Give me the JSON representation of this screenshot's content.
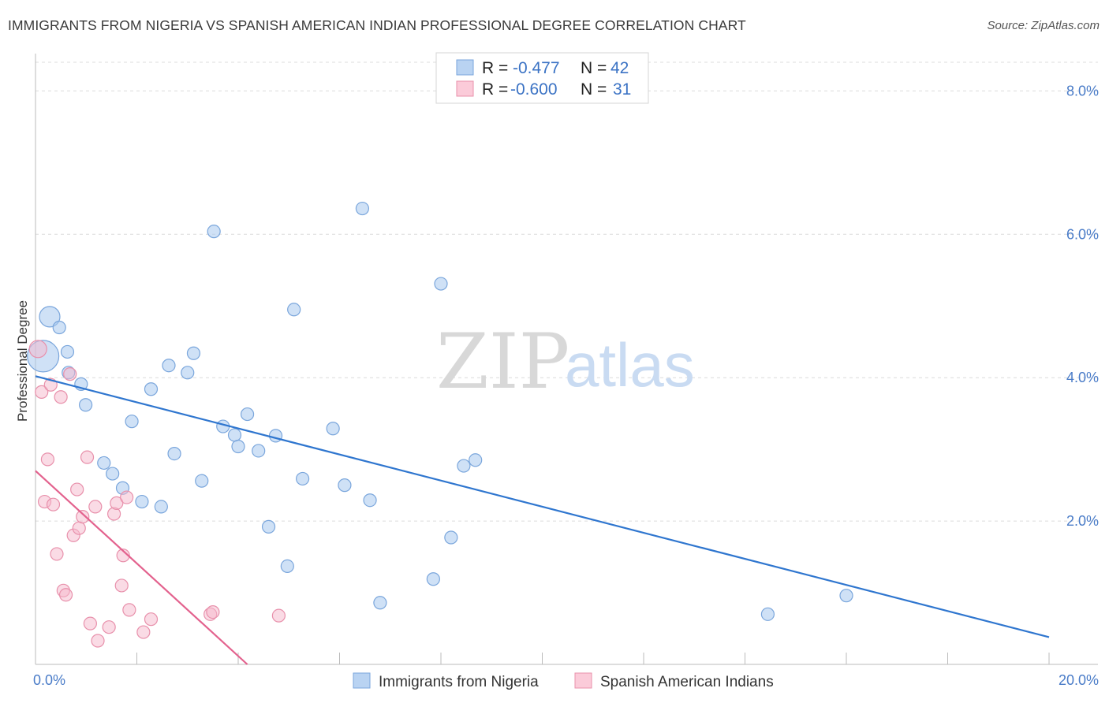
{
  "title": "IMMIGRANTS FROM NIGERIA VS SPANISH AMERICAN INDIAN PROFESSIONAL DEGREE CORRELATION CHART",
  "source": "Source: ZipAtlas.com",
  "watermark": {
    "zip": "ZIP",
    "atlas": "atlas"
  },
  "legend_box": {
    "rows": [
      {
        "r_label": "R = ",
        "r_value": "-0.477",
        "n_label": "N = ",
        "n_value": "42",
        "color": "#a8c8ee"
      },
      {
        "r_label": "R = ",
        "r_value": "-0.600",
        "n_label": "N = ",
        "n_value": "31",
        "color": "#f6b8cb"
      }
    ]
  },
  "chart_data": {
    "type": "scatter",
    "title": "IMMIGRANTS FROM NIGERIA VS SPANISH AMERICAN INDIAN PROFESSIONAL DEGREE CORRELATION CHART",
    "xlabel": "",
    "ylabel": "Professional Degree",
    "xlim": [
      0,
      20
    ],
    "ylim": [
      0,
      8.4
    ],
    "x_tick_labels": [
      "0.0%",
      "20.0%"
    ],
    "y_ticks": [
      2,
      4,
      6,
      8
    ],
    "y_tick_labels": [
      "2.0%",
      "4.0%",
      "6.0%",
      "8.0%"
    ],
    "grid": true,
    "legend_position": "bottom",
    "series": [
      {
        "name": "Immigrants from Nigeria",
        "color": "#a8c8ee",
        "edge_color": "#7aa6dc",
        "line_color": "#2f76cf",
        "trend": {
          "x": [
            0,
            20
          ],
          "y": [
            4.02,
            0.38
          ]
        },
        "points": [
          {
            "x": 0.15,
            "y": 4.3,
            "size": 20
          },
          {
            "x": 0.28,
            "y": 4.85,
            "size": 13
          },
          {
            "x": 0.47,
            "y": 4.7
          },
          {
            "x": 0.63,
            "y": 4.36
          },
          {
            "x": 0.65,
            "y": 4.07
          },
          {
            "x": 0.9,
            "y": 3.91
          },
          {
            "x": 0.99,
            "y": 3.62
          },
          {
            "x": 1.35,
            "y": 2.81
          },
          {
            "x": 1.52,
            "y": 2.66
          },
          {
            "x": 1.72,
            "y": 2.46
          },
          {
            "x": 1.9,
            "y": 3.39
          },
          {
            "x": 2.1,
            "y": 2.27
          },
          {
            "x": 2.28,
            "y": 3.84
          },
          {
            "x": 2.48,
            "y": 2.2
          },
          {
            "x": 2.63,
            "y": 4.17
          },
          {
            "x": 2.74,
            "y": 2.94
          },
          {
            "x": 3.0,
            "y": 4.07
          },
          {
            "x": 3.12,
            "y": 4.34
          },
          {
            "x": 3.28,
            "y": 2.56
          },
          {
            "x": 3.52,
            "y": 6.04
          },
          {
            "x": 3.7,
            "y": 3.32
          },
          {
            "x": 3.93,
            "y": 3.2
          },
          {
            "x": 4.0,
            "y": 3.04
          },
          {
            "x": 4.18,
            "y": 3.49
          },
          {
            "x": 4.4,
            "y": 2.98
          },
          {
            "x": 4.6,
            "y": 1.92
          },
          {
            "x": 4.74,
            "y": 3.19
          },
          {
            "x": 4.97,
            "y": 1.37
          },
          {
            "x": 5.1,
            "y": 4.95
          },
          {
            "x": 5.27,
            "y": 2.59
          },
          {
            "x": 5.87,
            "y": 3.29
          },
          {
            "x": 6.1,
            "y": 2.5
          },
          {
            "x": 6.45,
            "y": 6.36
          },
          {
            "x": 6.6,
            "y": 2.29
          },
          {
            "x": 6.8,
            "y": 0.86
          },
          {
            "x": 7.85,
            "y": 1.19
          },
          {
            "x": 8.0,
            "y": 5.31
          },
          {
            "x": 8.2,
            "y": 1.77
          },
          {
            "x": 8.45,
            "y": 2.77
          },
          {
            "x": 8.68,
            "y": 2.85
          },
          {
            "x": 14.45,
            "y": 0.7
          },
          {
            "x": 16.0,
            "y": 0.96
          }
        ]
      },
      {
        "name": "Spanish American Indians",
        "color": "#f6b8cb",
        "edge_color": "#e890ab",
        "line_color": "#e3628e",
        "trend": {
          "x": [
            0,
            4.18
          ],
          "y": [
            2.7,
            0
          ]
        },
        "points": [
          {
            "x": 0.05,
            "y": 4.4,
            "size": 11
          },
          {
            "x": 0.12,
            "y": 3.8
          },
          {
            "x": 0.18,
            "y": 2.27
          },
          {
            "x": 0.24,
            "y": 2.86
          },
          {
            "x": 0.3,
            "y": 3.9
          },
          {
            "x": 0.35,
            "y": 2.23
          },
          {
            "x": 0.42,
            "y": 1.54
          },
          {
            "x": 0.5,
            "y": 3.73
          },
          {
            "x": 0.55,
            "y": 1.03
          },
          {
            "x": 0.6,
            "y": 0.97
          },
          {
            "x": 0.68,
            "y": 4.05
          },
          {
            "x": 0.75,
            "y": 1.8
          },
          {
            "x": 0.82,
            "y": 2.44
          },
          {
            "x": 0.86,
            "y": 1.9
          },
          {
            "x": 0.93,
            "y": 2.06
          },
          {
            "x": 1.02,
            "y": 2.89
          },
          {
            "x": 1.08,
            "y": 0.57
          },
          {
            "x": 1.18,
            "y": 2.2
          },
          {
            "x": 1.23,
            "y": 0.33
          },
          {
            "x": 1.45,
            "y": 0.52
          },
          {
            "x": 1.55,
            "y": 2.1
          },
          {
            "x": 1.6,
            "y": 2.25
          },
          {
            "x": 1.7,
            "y": 1.1
          },
          {
            "x": 1.73,
            "y": 1.52
          },
          {
            "x": 1.8,
            "y": 2.33
          },
          {
            "x": 1.85,
            "y": 0.76
          },
          {
            "x": 2.13,
            "y": 0.45
          },
          {
            "x": 2.28,
            "y": 0.63
          },
          {
            "x": 3.45,
            "y": 0.7
          },
          {
            "x": 3.5,
            "y": 0.73
          },
          {
            "x": 4.8,
            "y": 0.68
          }
        ]
      }
    ]
  }
}
